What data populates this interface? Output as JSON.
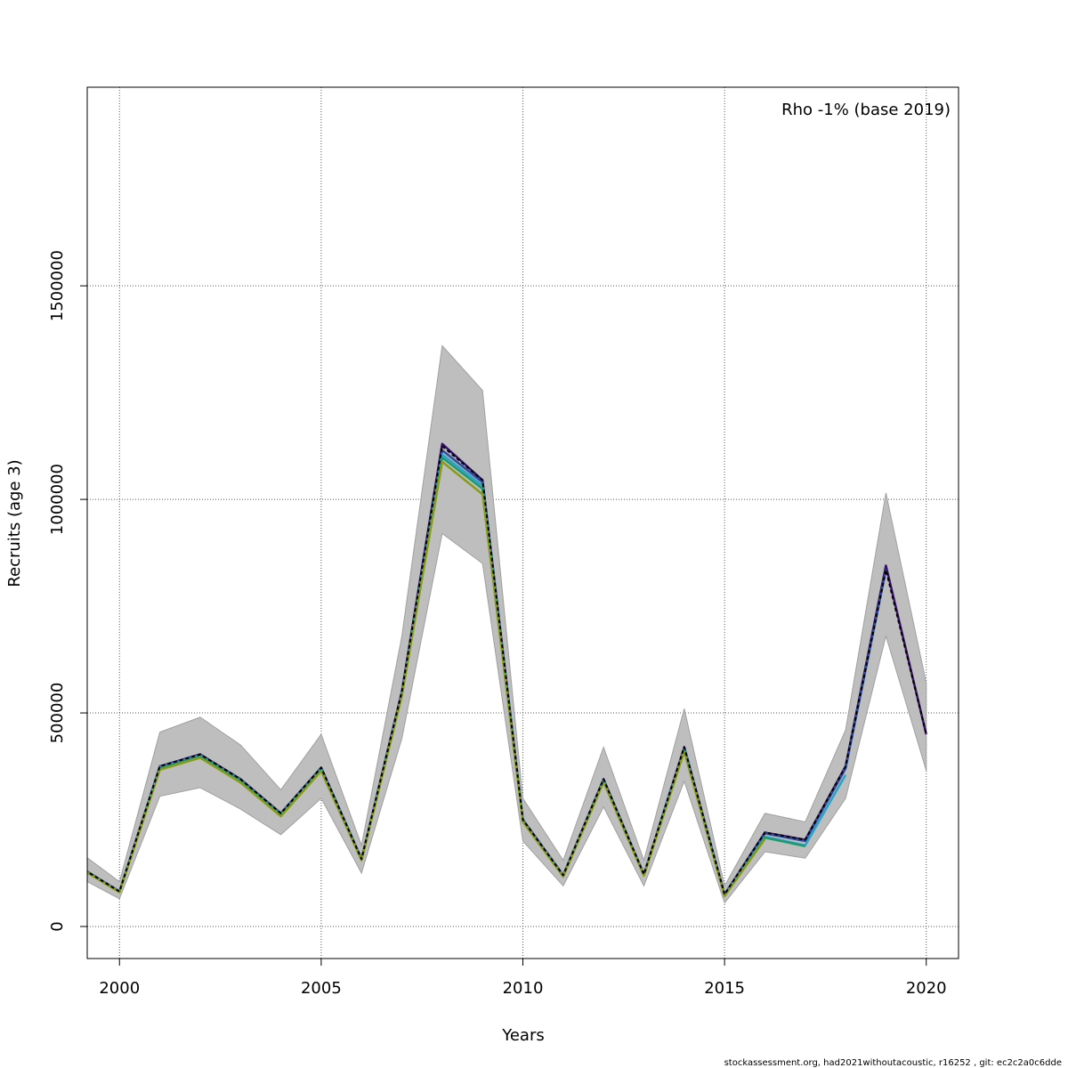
{
  "chart_data": {
    "type": "line",
    "title": "",
    "annotation": "Rho -1% (base 2019)",
    "xlabel": "Years",
    "ylabel": "Recruits (age 3)",
    "xlim": [
      1999.2,
      2020.8
    ],
    "ylim": [
      -75000,
      1965000
    ],
    "x_ticks": [
      2000,
      2005,
      2010,
      2015,
      2020
    ],
    "x_tick_labels": [
      "2000",
      "2005",
      "2010",
      "2015",
      "2020"
    ],
    "y_ticks": [
      0,
      500000,
      1000000,
      1500000
    ],
    "y_tick_labels": [
      "0",
      "500000",
      "1000000",
      "1500000"
    ],
    "grid": true,
    "confidence_band": {
      "x": [
        1999,
        2000,
        2001,
        2002,
        2003,
        2004,
        2005,
        2006,
        2007,
        2008,
        2009,
        2010,
        2011,
        2012,
        2013,
        2014,
        2015,
        2016,
        2017,
        2018,
        2019,
        2020
      ],
      "lower": [
        115000,
        65000,
        305000,
        325000,
        275000,
        215000,
        300000,
        125000,
        440000,
        920000,
        850000,
        200000,
        95000,
        280000,
        95000,
        340000,
        55000,
        175000,
        160000,
        300000,
        680000,
        365000
      ],
      "upper": [
        175000,
        105000,
        455000,
        490000,
        425000,
        320000,
        450000,
        190000,
        680000,
        1360000,
        1255000,
        300000,
        155000,
        420000,
        155000,
        510000,
        95000,
        265000,
        245000,
        460000,
        1015000,
        570000
      ]
    },
    "series": [
      {
        "color": "#3a0f6b",
        "x": [
          1999,
          2000,
          2001,
          2002,
          2003,
          2004,
          2005,
          2006,
          2007,
          2008,
          2009,
          2010,
          2011,
          2012,
          2013,
          2014,
          2015,
          2016,
          2017,
          2018,
          2019,
          2020
        ],
        "values": [
          140000,
          82000,
          375000,
          403000,
          345000,
          265000,
          372000,
          158000,
          550000,
          1130000,
          1045000,
          250000,
          120000,
          345000,
          122000,
          420000,
          75000,
          220000,
          203000,
          375000,
          845000,
          450000
        ]
      },
      {
        "color": "#2b4f9e",
        "x": [
          1999,
          2000,
          2001,
          2002,
          2003,
          2004,
          2005,
          2006,
          2007,
          2008,
          2009,
          2010,
          2011,
          2012,
          2013,
          2014,
          2015,
          2016,
          2017,
          2018,
          2019
        ],
        "values": [
          140000,
          82000,
          374000,
          402000,
          344000,
          264000,
          371000,
          157000,
          548000,
          1115000,
          1040000,
          249000,
          119000,
          344000,
          121000,
          418000,
          74000,
          218000,
          200000,
          370000,
          835000
        ]
      },
      {
        "color": "#29a3c9",
        "x": [
          1999,
          2000,
          2001,
          2002,
          2003,
          2004,
          2005,
          2006,
          2007,
          2008,
          2009,
          2010,
          2011,
          2012,
          2013,
          2014,
          2015,
          2016,
          2017,
          2018
        ],
        "values": [
          139000,
          81000,
          372000,
          400000,
          342000,
          263000,
          369000,
          157000,
          545000,
          1105000,
          1032000,
          248000,
          119000,
          342000,
          121000,
          416000,
          73000,
          210000,
          190000,
          355000
        ]
      },
      {
        "color": "#1b9b6b",
        "x": [
          1999,
          2000,
          2001,
          2002,
          2003,
          2004,
          2005,
          2006,
          2007,
          2008,
          2009,
          2010,
          2011,
          2012,
          2013,
          2014,
          2015,
          2016,
          2017
        ],
        "values": [
          139000,
          81000,
          371000,
          399000,
          341000,
          262000,
          368000,
          156000,
          543000,
          1098000,
          1025000,
          247000,
          118000,
          341000,
          120000,
          414000,
          72000,
          208000,
          188000
        ]
      },
      {
        "color": "#8a9a1a",
        "x": [
          1999,
          2000,
          2001,
          2002,
          2003,
          2004,
          2005,
          2006,
          2007,
          2008,
          2009,
          2010,
          2011,
          2012,
          2013,
          2014,
          2015,
          2016
        ],
        "values": [
          138000,
          80000,
          367000,
          395000,
          337000,
          258000,
          364000,
          155000,
          540000,
          1088000,
          1012000,
          245000,
          117000,
          338000,
          119000,
          410000,
          71000,
          205000
        ]
      },
      {
        "color": "#000000",
        "dashed": true,
        "x": [
          1999,
          2000,
          2001,
          2002,
          2003,
          2004,
          2005,
          2006,
          2007,
          2008,
          2009,
          2010,
          2011,
          2012,
          2013,
          2014,
          2015,
          2016,
          2017,
          2018,
          2019,
          2020
        ],
        "values": [
          140000,
          82000,
          375000,
          403000,
          345000,
          265000,
          372000,
          158000,
          550000,
          1125000,
          1045000,
          250000,
          120000,
          345000,
          122000,
          420000,
          75000,
          220000,
          203000,
          375000,
          835000,
          450000
        ]
      }
    ],
    "colors": {
      "band": "#bebebe",
      "band_edge": "#a0a0a0"
    }
  },
  "footer": "stockassessment.org, had2021withoutacoustic, r16252 , git: ec2c2a0c6dde"
}
